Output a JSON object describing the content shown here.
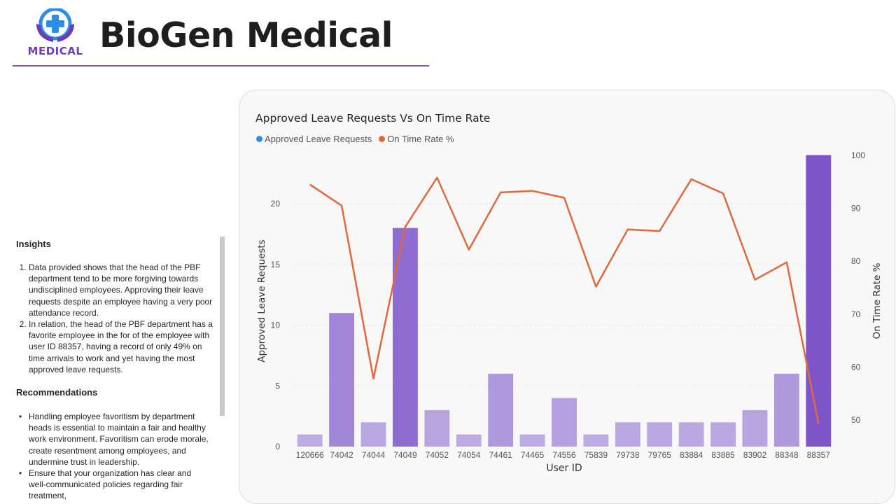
{
  "brand": {
    "logo_text": "MEDICAL",
    "title": "BioGen Medical"
  },
  "colors": {
    "accent": "#7b52c8",
    "bar": "#8b66cf",
    "line": "#e0683c",
    "legend_bar_dot": "#2b8ee6"
  },
  "sidebar": {
    "insights_title": "Insights",
    "insights": [
      "Data provided shows that the head of the PBF department tend to be more forgiving towards undisciplined employees. Approving their leave requests despite an employee having a very poor attendance record.",
      "In relation, the head of the PBF department has a favorite employee in the for of the employee with user ID 88357, having a record of only 49% on time arrivals to work and yet having the most approved leave requests."
    ],
    "recommendations_title": "Recommendations",
    "recommendations": [
      "Handling employee favoritism by department heads is essential to maintain a fair and healthy work environment. Favoritism can erode morale, create resentment among employees, and undermine trust in leadership.",
      "Ensure that your organization has clear and well-communicated policies regarding fair treatment,"
    ]
  },
  "chart_data": {
    "type": "bar",
    "title": "Approved Leave Requests Vs On Time Rate",
    "xlabel": "User ID",
    "ylabel": "Approved Leave Requests",
    "y2label": "On Time Rate %",
    "categories": [
      "120666",
      "74042",
      "74044",
      "74049",
      "74052",
      "74054",
      "74461",
      "74465",
      "74556",
      "75839",
      "79738",
      "79765",
      "83884",
      "83885",
      "83902",
      "88348",
      "88357"
    ],
    "series": [
      {
        "name": "Approved Leave Requests",
        "type": "bar",
        "axis": "left",
        "values": [
          1,
          11,
          2,
          18,
          3,
          1,
          6,
          1,
          4,
          1,
          2,
          2,
          2,
          2,
          3,
          6,
          24
        ]
      },
      {
        "name": "On Time Rate %",
        "type": "line",
        "axis": "right",
        "values": [
          94.5,
          90.5,
          57.8,
          86.5,
          95.8,
          82.2,
          93,
          93.3,
          92,
          75.2,
          86,
          85.7,
          95.5,
          92.8,
          76.5,
          79.8,
          49.3
        ]
      }
    ],
    "ylim": [
      0,
      24
    ],
    "y_ticks": [
      0,
      5,
      10,
      15,
      20
    ],
    "y2lim": [
      45,
      100
    ],
    "y2_ticks": [
      50,
      60,
      70,
      80,
      90,
      100
    ],
    "grid": true,
    "legend_position": "top-left"
  }
}
